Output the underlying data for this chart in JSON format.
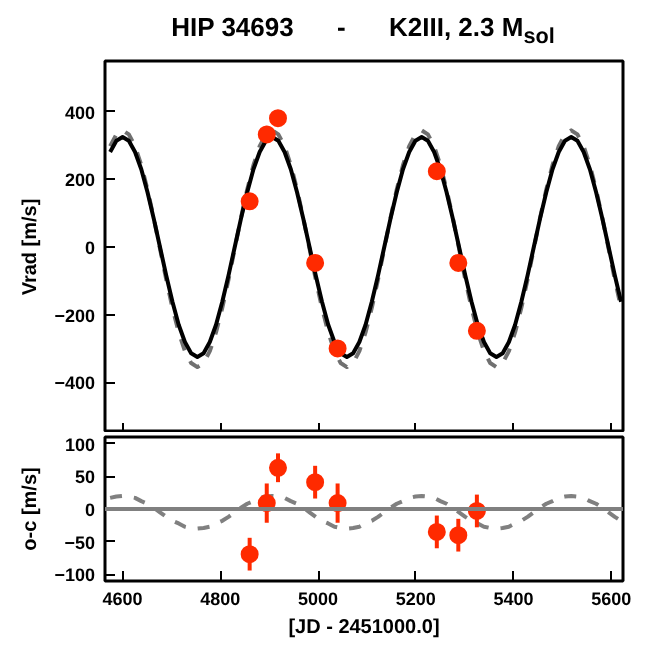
{
  "chart_data": [
    {
      "type": "scatter",
      "title": "HIP 34693      -      K2III, 2.3 M$_{sol}$",
      "ylabel": "Vrad [m/s]",
      "xlim": [
        4564,
        5624
      ],
      "ylim": [
        -550,
        550
      ],
      "xticks": [
        4600,
        4800,
        5000,
        5200,
        5400,
        5600
      ],
      "yticks": [
        -400,
        -200,
        0,
        200,
        400
      ],
      "tick_labels": "y",
      "grid": false,
      "marker": "circle",
      "series": [
        {
          "type": "line",
          "marker": "none",
          "line_style": "dashed",
          "color": "#707070",
          "x": [
            4574.5,
            4587.25,
            4600,
            4612.75,
            4625.5,
            4638.25,
            4651,
            4663.75,
            4676.5,
            4689.25,
            4702,
            4714.75,
            4727.5,
            4740.25,
            4753,
            4765.75,
            4778.5,
            4791.25,
            4804,
            4816.75,
            4829.5,
            4842.25,
            4855,
            4867.75,
            4880.5,
            4893.25,
            4906,
            4918.75,
            4931.5,
            4944.25,
            4957,
            4969.75,
            4982.5,
            4995.25,
            5008,
            5020.75,
            5033.5,
            5046.25,
            5059,
            5071.75,
            5084.5,
            5097.25,
            5110,
            5122.75,
            5135.5,
            5148.25,
            5161,
            5173.75,
            5186.5,
            5199.25,
            5212,
            5224.75,
            5237.5,
            5250.25,
            5263,
            5275.75,
            5288.5,
            5301.25,
            5314,
            5326.75,
            5339.5,
            5352.25,
            5365,
            5377.75,
            5390.5,
            5403.25,
            5416,
            5428.75,
            5441.5,
            5454.25,
            5467,
            5479.75,
            5492.5,
            5505.25,
            5518,
            5530.75,
            5543.5,
            5556.25,
            5569,
            5581.75,
            5594.5,
            5607.25,
            5620
          ],
          "values": [
            298,
            333,
            345,
            333,
            298,
            242,
            170,
            86,
            -5,
            -96,
            -180,
            -252,
            -308,
            -343,
            -355,
            -343,
            -308,
            -252,
            -180,
            -96,
            -5,
            86,
            170,
            242,
            298,
            333,
            345,
            333,
            298,
            242,
            170,
            86,
            -5,
            -96,
            -180,
            -252,
            -308,
            -343,
            -355,
            -343,
            -308,
            -252,
            -180,
            -96,
            -5,
            86,
            170,
            242,
            298,
            333,
            345,
            333,
            298,
            242,
            170,
            86,
            -5,
            -96,
            -180,
            -252,
            -308,
            -343,
            -355,
            -343,
            -308,
            -252,
            -180,
            -96,
            -5,
            86,
            170,
            242,
            298,
            333,
            345,
            333,
            298,
            242,
            170,
            86,
            -5,
            -96,
            -180
          ]
        },
        {
          "type": "line",
          "marker": "none",
          "line_style": "solid",
          "color": "#000000",
          "x": [
            4574.5,
            4587.25,
            4600,
            4612.75,
            4625.5,
            4638.25,
            4651,
            4663.75,
            4676.5,
            4689.25,
            4702,
            4714.75,
            4727.5,
            4740.25,
            4753,
            4765.75,
            4778.5,
            4791.25,
            4804,
            4816.75,
            4829.5,
            4842.25,
            4855,
            4867.75,
            4880.5,
            4893.25,
            4906,
            4918.75,
            4931.5,
            4944.25,
            4957,
            4969.75,
            4982.5,
            4995.25,
            5008,
            5020.75,
            5033.5,
            5046.25,
            5059,
            5071.75,
            5084.5,
            5097.25,
            5110,
            5122.75,
            5135.5,
            5148.25,
            5161,
            5173.75,
            5186.5,
            5199.25,
            5212,
            5224.75,
            5237.5,
            5250.25,
            5263,
            5275.75,
            5288.5,
            5301.25,
            5314,
            5326.75,
            5339.5,
            5352.25,
            5365,
            5377.75,
            5390.5,
            5403.25,
            5416,
            5428.75,
            5441.5,
            5454.25,
            5467,
            5479.75,
            5492.5,
            5505.25,
            5518,
            5530.75,
            5543.5,
            5556.25,
            5569,
            5581.75,
            5594.5,
            5607.25,
            5620
          ],
          "values": [
            281,
            314,
            325,
            314,
            281,
            230,
            162,
            84,
            0,
            -84,
            -162,
            -230,
            -281,
            -314,
            -325,
            -314,
            -281,
            -230,
            -162,
            -84,
            0,
            84,
            162,
            230,
            281,
            314,
            325,
            314,
            281,
            230,
            162,
            84,
            0,
            -84,
            -162,
            -230,
            -281,
            -314,
            -325,
            -314,
            -281,
            -230,
            -162,
            -84,
            0,
            84,
            162,
            230,
            281,
            314,
            325,
            314,
            281,
            230,
            162,
            84,
            0,
            -84,
            -162,
            -230,
            -281,
            -314,
            -325,
            -314,
            -281,
            -230,
            -162,
            -84,
            0,
            84,
            162,
            230,
            281,
            314,
            325,
            314,
            281,
            230,
            162,
            84,
            0,
            -84,
            -162
          ]
        },
        {
          "color": "#ff2a00",
          "x": [
            4860,
            4895,
            4918,
            4994,
            5040,
            5243,
            5287,
            5325
          ],
          "values": [
            135,
            333,
            381,
            -47,
            -300,
            224,
            -47,
            -248
          ],
          "errors": [
            20,
            25,
            18,
            18,
            25,
            20,
            18,
            18
          ]
        }
      ]
    },
    {
      "type": "scatter",
      "xlabel": "[JD - 2451000.0]",
      "ylabel": "o-c [m/s]",
      "xlim": [
        4564,
        5624
      ],
      "ylim": [
        -110,
        110
      ],
      "xticks": [
        4600,
        4800,
        5000,
        5200,
        5400,
        5600
      ],
      "yticks": [
        -100,
        -50,
        0,
        50,
        100
      ],
      "grid": false,
      "marker": "circle",
      "ref_lines": [
        {
          "axis": "y",
          "value": 0,
          "color": "#808080"
        }
      ],
      "series": [
        {
          "type": "line",
          "marker": "none",
          "line_style": "dashed",
          "color": "#808080",
          "x": [
            4574.5,
            4587.25,
            4600,
            4612.75,
            4625.5,
            4638.25,
            4651,
            4663.75,
            4676.5,
            4689.25,
            4702,
            4714.75,
            4727.5,
            4740.25,
            4753,
            4765.75,
            4778.5,
            4791.25,
            4804,
            4816.75,
            4829.5,
            4842.25,
            4855,
            4867.75,
            4880.5,
            4893.25,
            4906,
            4918.75,
            4931.5,
            4944.25,
            4957,
            4969.75,
            4982.5,
            4995.25,
            5008,
            5020.75,
            5033.5,
            5046.25,
            5059,
            5071.75,
            5084.5,
            5097.25,
            5110,
            5122.75,
            5135.5,
            5148.25,
            5161,
            5173.75,
            5186.5,
            5199.25,
            5212,
            5224.75,
            5237.5,
            5250.25,
            5263,
            5275.75,
            5288.5,
            5301.25,
            5314,
            5326.75,
            5339.5,
            5352.25,
            5365,
            5377.75,
            5390.5,
            5403.25,
            5416,
            5428.75,
            5441.5,
            5454.25,
            5467,
            5479.75,
            5492.5,
            5505.25,
            5518,
            5530.75,
            5543.5,
            5556.25,
            5569,
            5581.75,
            5594.5,
            5607.25,
            5620
          ],
          "values": [
            17,
            19,
            20,
            19,
            17,
            12,
            8,
            2,
            -5,
            -12,
            -18,
            -22,
            -27,
            -29,
            -30,
            -29,
            -27,
            -22,
            -18,
            -12,
            -5,
            2,
            8,
            12,
            17,
            19,
            20,
            19,
            17,
            12,
            8,
            2,
            -5,
            -12,
            -18,
            -22,
            -27,
            -29,
            -30,
            -29,
            -27,
            -22,
            -18,
            -12,
            -5,
            2,
            8,
            12,
            17,
            19,
            20,
            19,
            17,
            12,
            8,
            2,
            -5,
            -12,
            -18,
            -22,
            -27,
            -29,
            -30,
            -29,
            -27,
            -22,
            -18,
            -12,
            -5,
            2,
            8,
            12,
            17,
            19,
            20,
            19,
            17,
            12,
            8,
            2,
            -5,
            -12,
            -18
          ]
        },
        {
          "color": "#ff2a00",
          "x": [
            4860,
            4895,
            4918,
            4994,
            5040,
            5243,
            5287,
            5325
          ],
          "values": [
            -69,
            9,
            63,
            41,
            9,
            -35,
            -40,
            -3
          ],
          "errors": [
            25,
            30,
            22,
            25,
            30,
            25,
            25,
            25
          ]
        }
      ]
    }
  ]
}
